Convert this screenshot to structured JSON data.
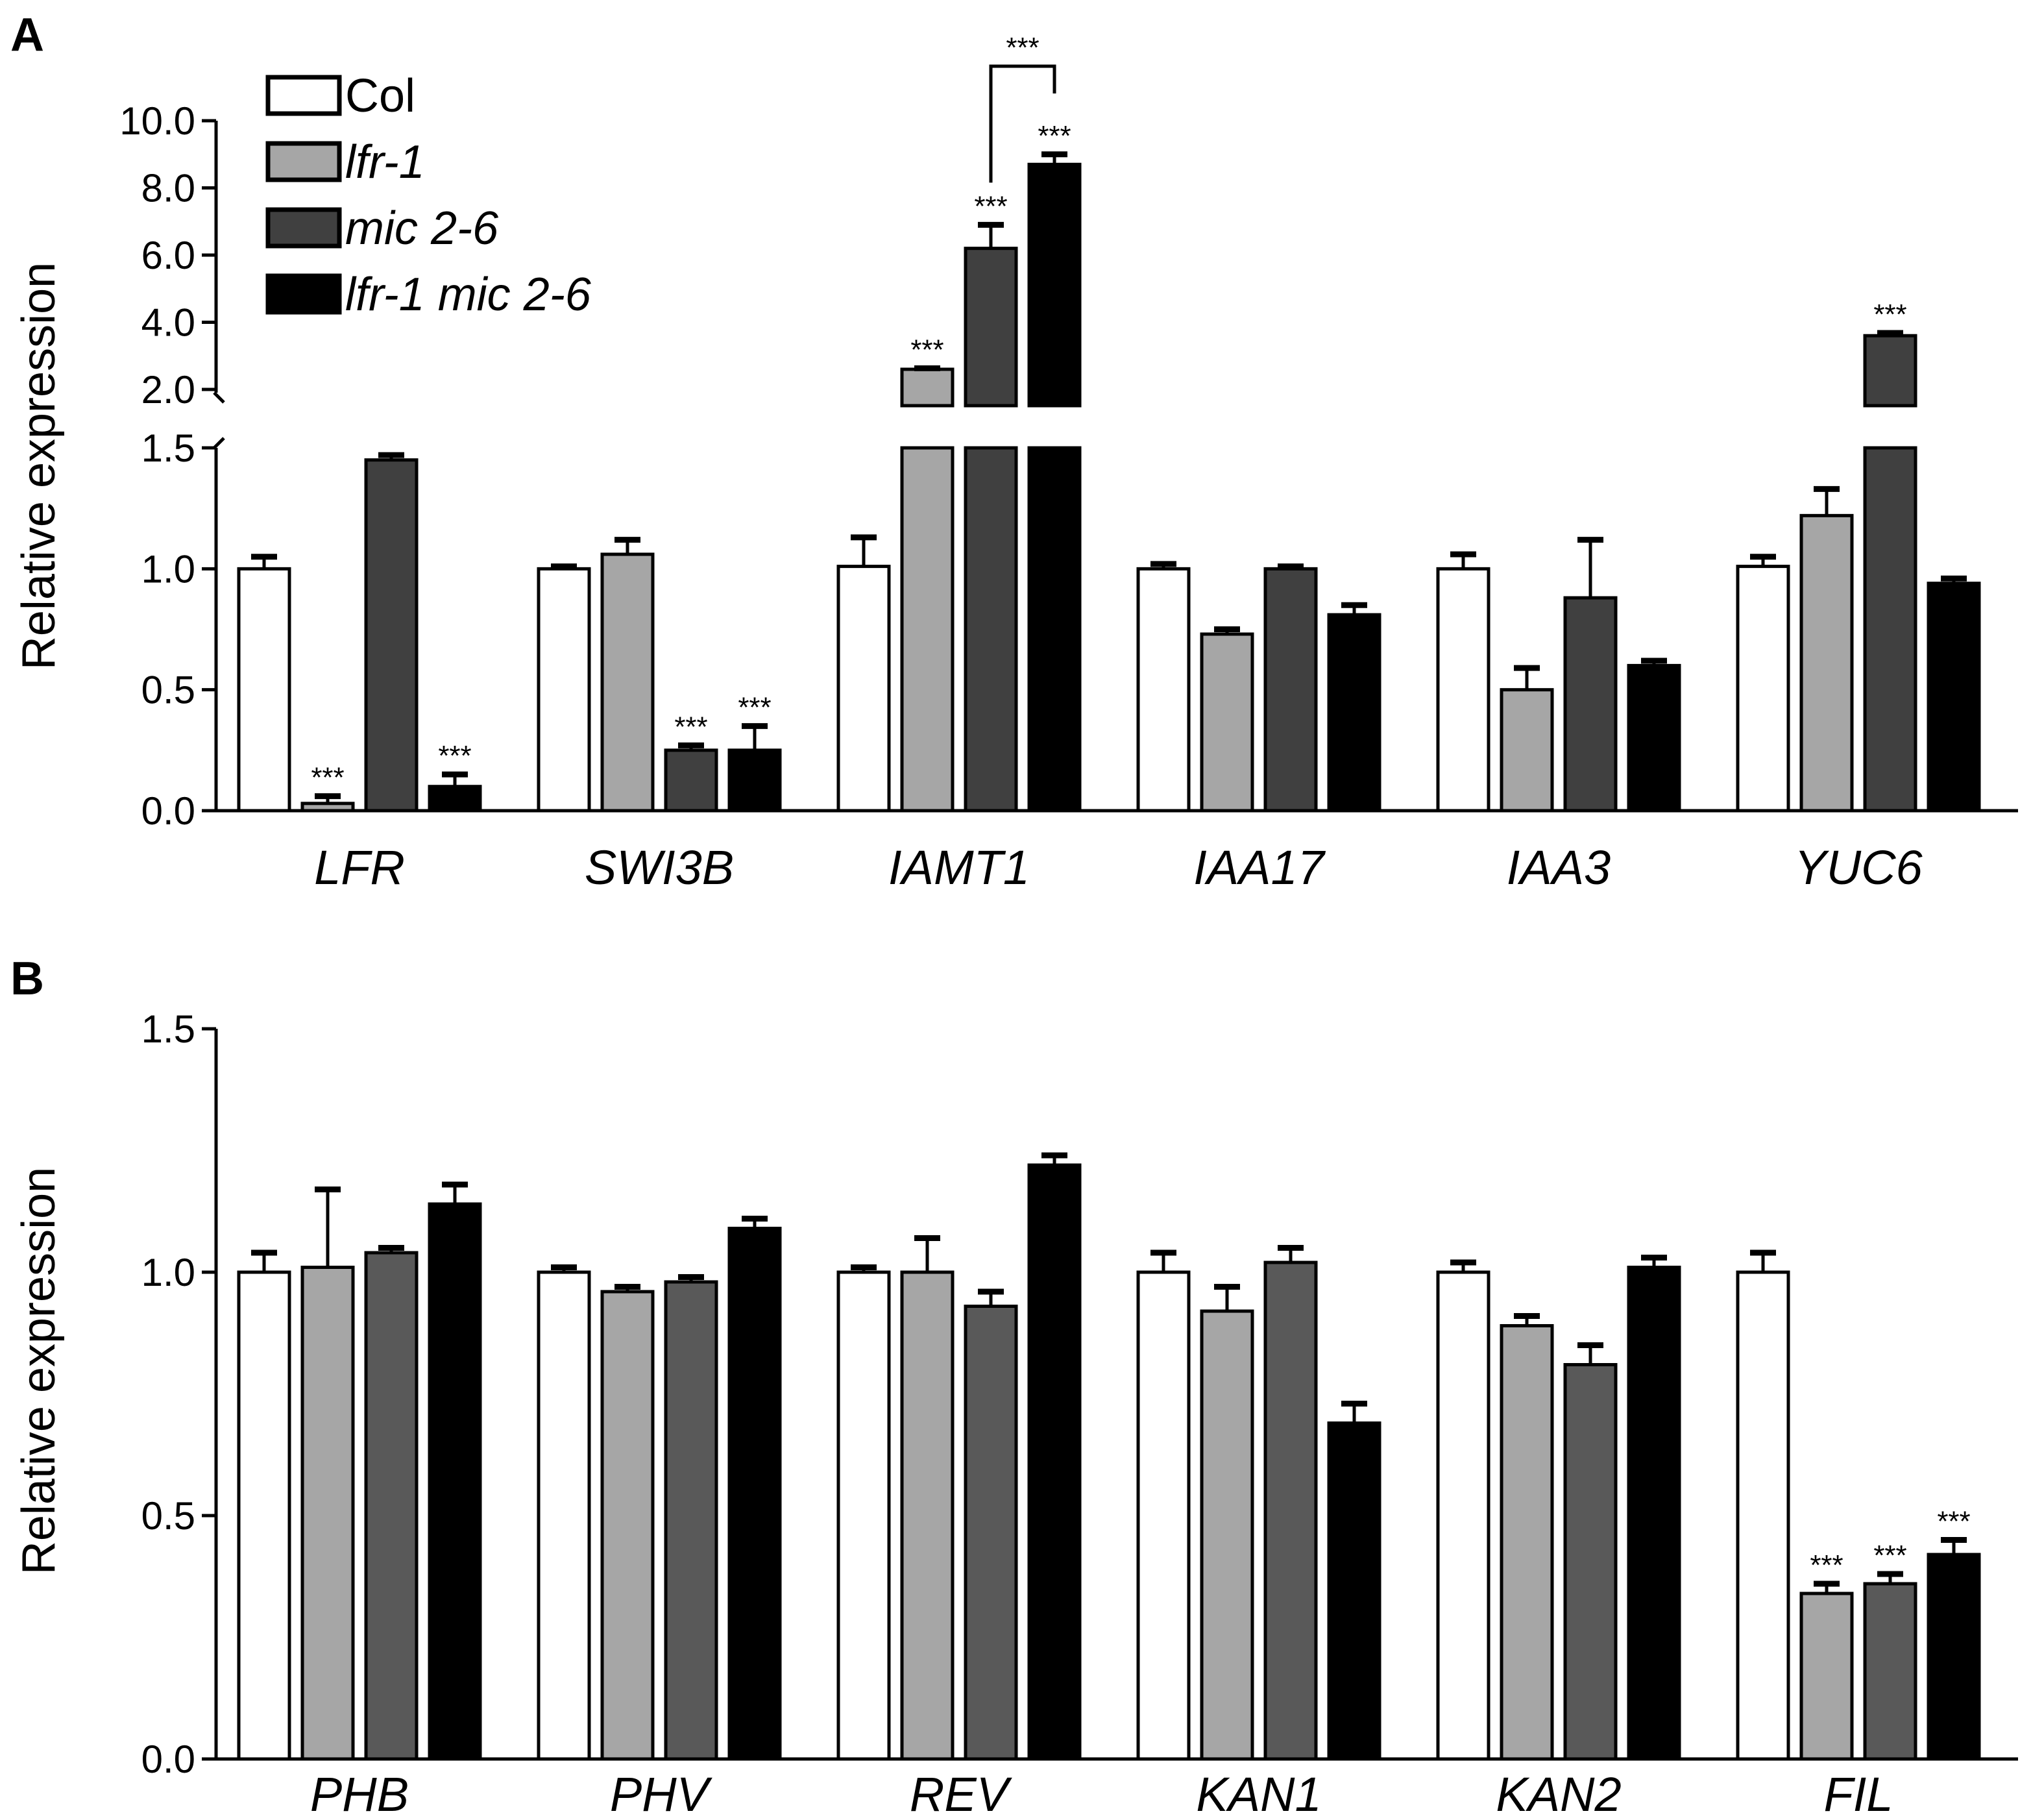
{
  "chart_data": [
    {
      "panel": "A",
      "type": "bar",
      "ylabel": "Relative expression",
      "categories": [
        "LFR",
        "SWI3B",
        "IAMT1",
        "IAA17",
        "IAA3",
        "YUC6"
      ],
      "axis_break": {
        "lower_range": [
          0,
          1.5
        ],
        "upper_range": [
          2.0,
          10.0
        ],
        "lower_ticks": [
          "0.0",
          "0.5",
          "1.0",
          "1.5"
        ],
        "upper_ticks": [
          "2.0",
          "4.0",
          "6.0",
          "8.0",
          "10.0"
        ]
      },
      "series": [
        {
          "name": "Col",
          "color": "#ffffff",
          "values": [
            1.0,
            1.0,
            1.01,
            1.0,
            1.0,
            1.01
          ],
          "errors": [
            0.05,
            0.01,
            0.12,
            0.02,
            0.06,
            0.04
          ],
          "sig": [
            "",
            "",
            "",
            "",
            "",
            ""
          ]
        },
        {
          "name": "lfr-1",
          "color": "#a6a6a6",
          "values": [
            0.03,
            1.06,
            2.6,
            0.73,
            0.5,
            1.22
          ],
          "errors": [
            0.03,
            0.06,
            0.03,
            0.02,
            0.09,
            0.11
          ],
          "sig": [
            "***",
            "",
            "***",
            "",
            "",
            ""
          ]
        },
        {
          "name": "mic 2-6",
          "color": "#404040",
          "values": [
            1.45,
            0.25,
            6.2,
            1.0,
            0.88,
            3.6
          ],
          "errors": [
            0.02,
            0.02,
            0.7,
            0.01,
            0.24,
            0.08
          ],
          "sig": [
            "",
            "***",
            "***",
            "",
            "",
            "***"
          ]
        },
        {
          "name": "lfr-1 mic 2-6",
          "color": "#000000",
          "values": [
            0.1,
            0.25,
            8.7,
            0.81,
            0.6,
            0.94
          ],
          "errors": [
            0.05,
            0.1,
            0.3,
            0.04,
            0.02,
            0.02
          ],
          "sig": [
            "***",
            "***",
            "***",
            "",
            "",
            ""
          ]
        }
      ],
      "bracket_label": "***",
      "legend": [
        "Col",
        "lfr-1",
        "mic 2-6",
        "lfr-1 mic 2-6"
      ]
    },
    {
      "panel": "B",
      "type": "bar",
      "ylabel": "Relative expression",
      "categories": [
        "PHB",
        "PHV",
        "REV",
        "KAN1",
        "KAN2",
        "FIL"
      ],
      "ylim": [
        0,
        1.5
      ],
      "yticks": [
        "0.0",
        "0.5",
        "1.0",
        "1.5"
      ],
      "series": [
        {
          "name": "Col",
          "color": "#ffffff",
          "values": [
            1.0,
            1.0,
            1.0,
            1.0,
            1.0,
            1.0
          ],
          "errors": [
            0.04,
            0.01,
            0.01,
            0.04,
            0.02,
            0.04
          ],
          "sig": [
            "",
            "",
            "",
            "",
            "",
            ""
          ]
        },
        {
          "name": "lfr-1",
          "color": "#a6a6a6",
          "values": [
            1.01,
            0.96,
            1.0,
            0.92,
            0.89,
            0.34
          ],
          "errors": [
            0.16,
            0.01,
            0.07,
            0.05,
            0.02,
            0.02
          ],
          "sig": [
            "",
            "",
            "",
            "",
            "",
            "***"
          ]
        },
        {
          "name": "mic 2-6",
          "color": "#595959",
          "values": [
            1.04,
            0.98,
            0.93,
            1.02,
            0.81,
            0.36
          ],
          "errors": [
            0.01,
            0.01,
            0.03,
            0.03,
            0.04,
            0.02
          ],
          "sig": [
            "",
            "",
            "",
            "",
            "",
            "***"
          ]
        },
        {
          "name": "lfr-1 mic 2-6",
          "color": "#000000",
          "values": [
            1.14,
            1.09,
            1.22,
            0.69,
            1.01,
            0.42
          ],
          "errors": [
            0.04,
            0.02,
            0.02,
            0.04,
            0.02,
            0.03
          ],
          "sig": [
            "",
            "",
            "",
            "",
            "",
            "***"
          ]
        }
      ]
    }
  ]
}
